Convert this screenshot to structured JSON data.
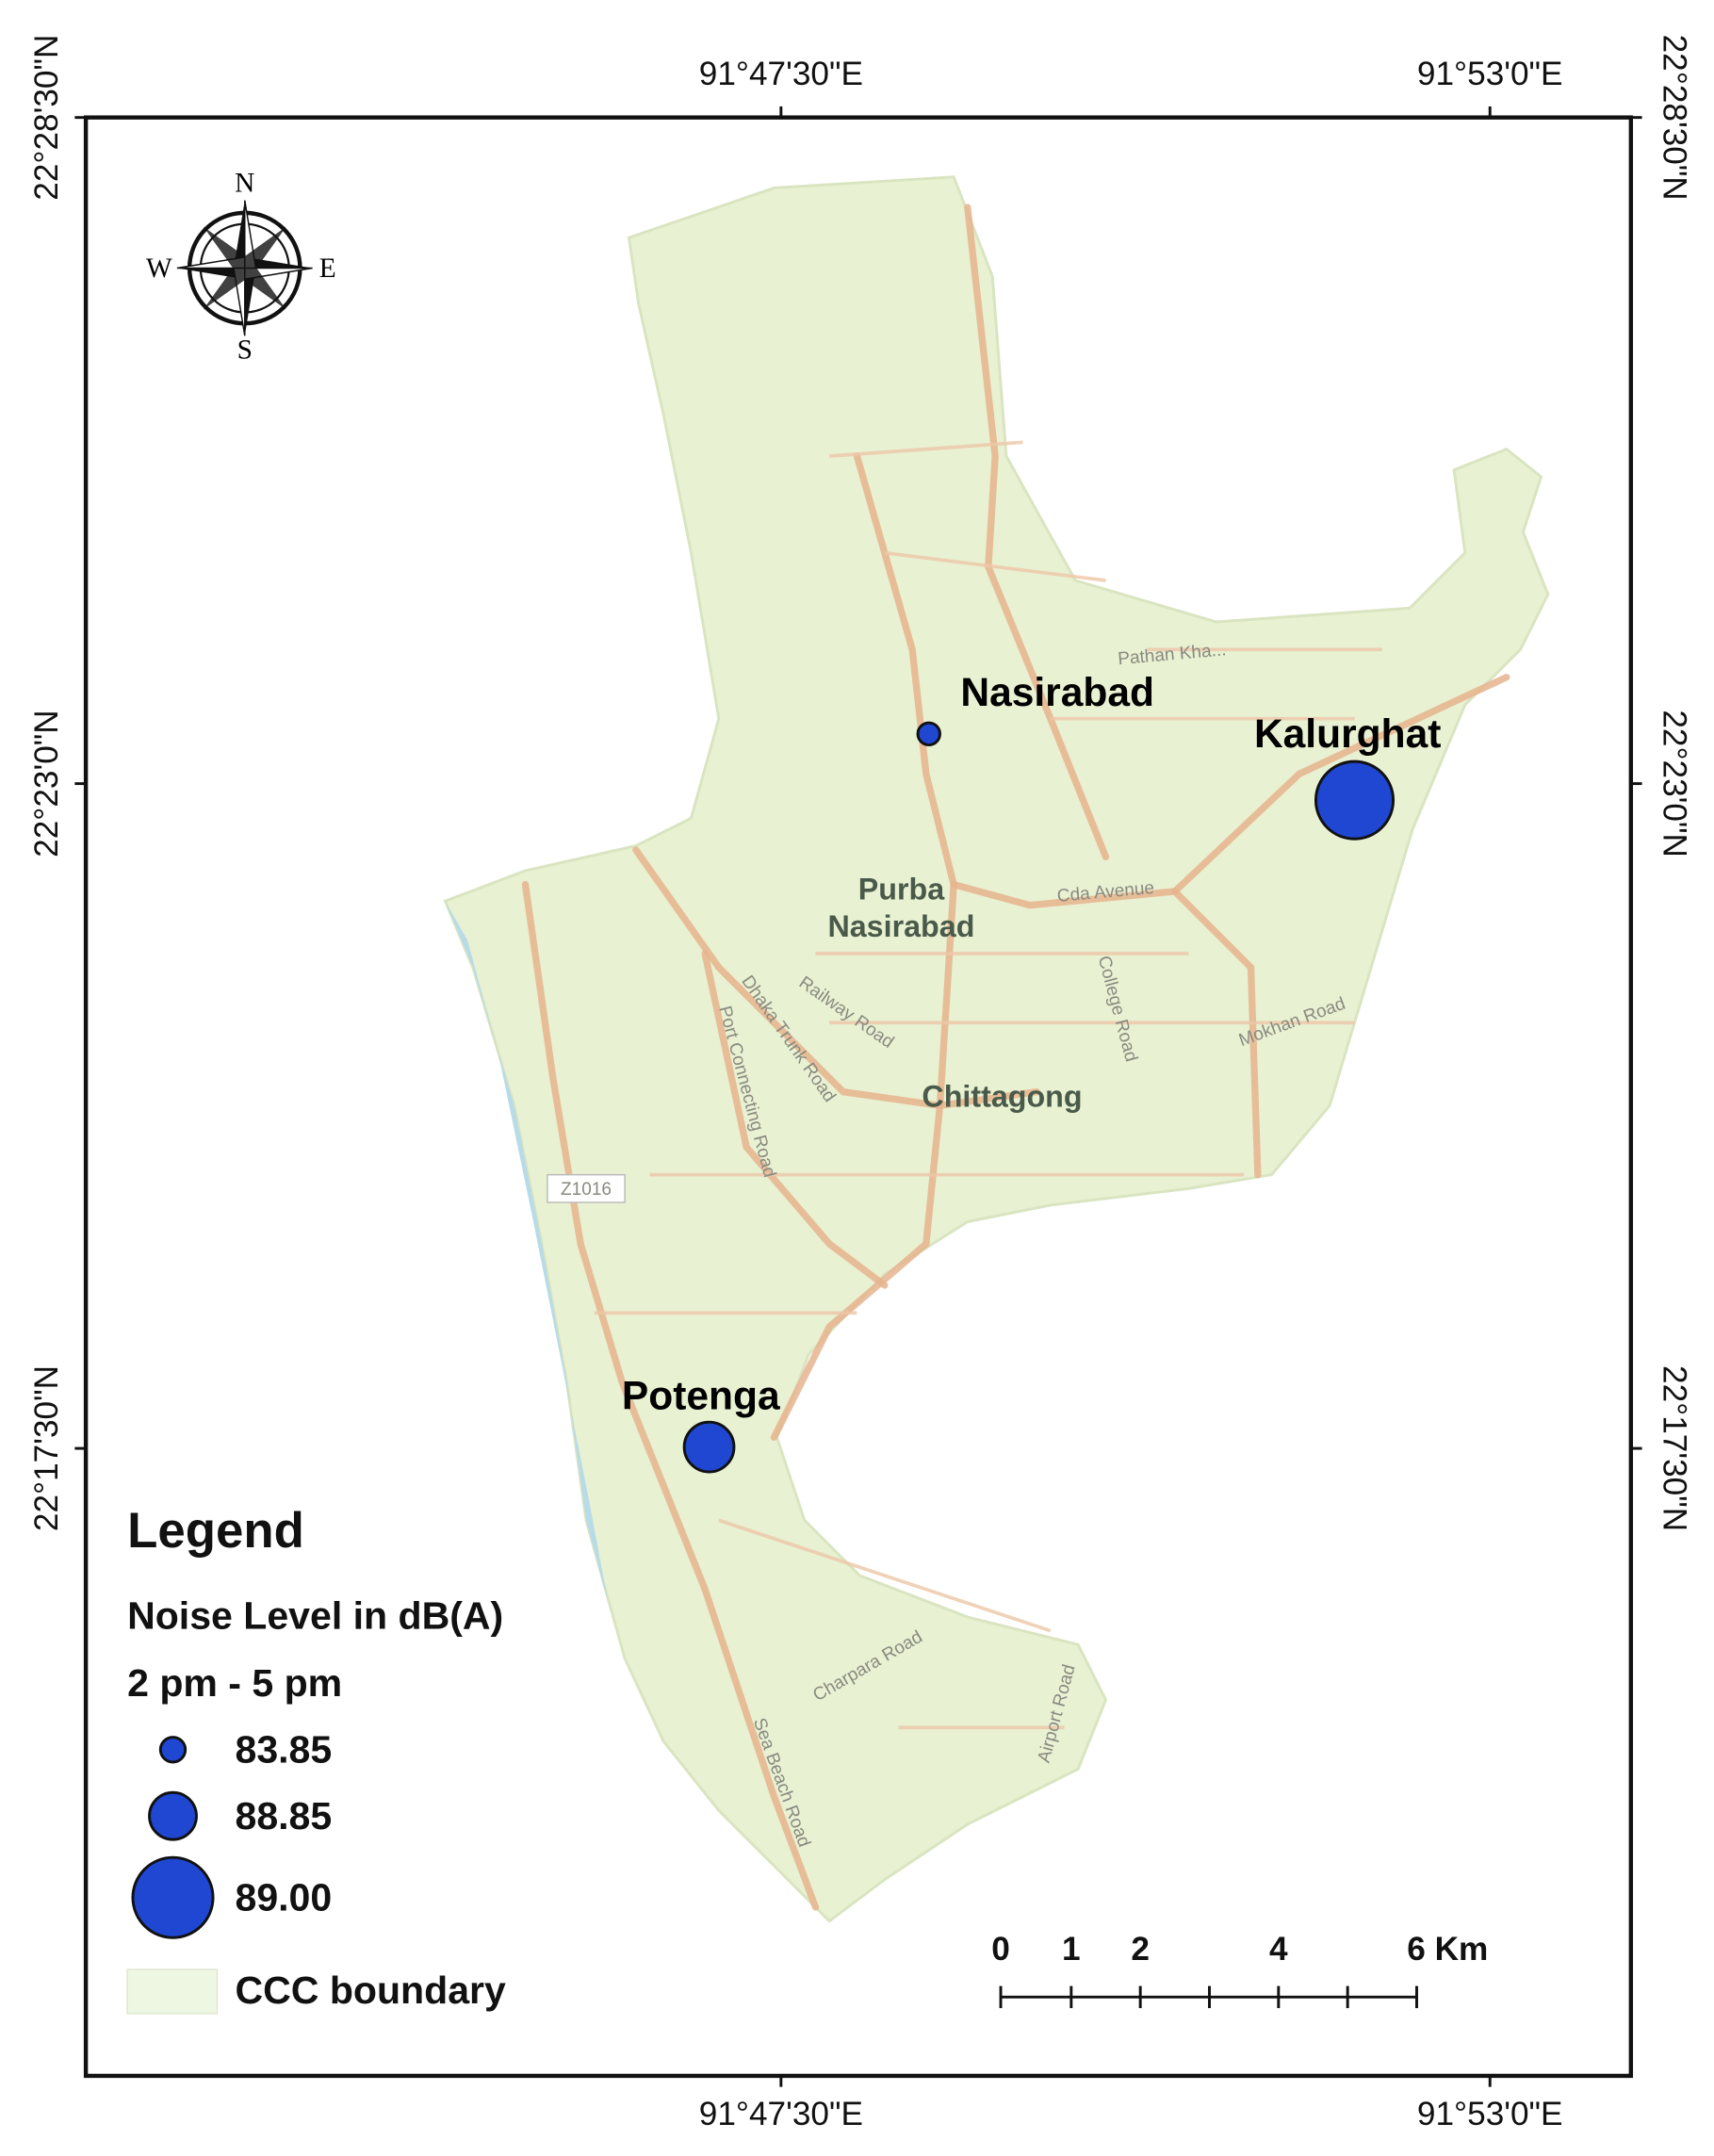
{
  "map": {
    "top_labels": [
      "91°47'30\"E",
      "91°53'0\"E"
    ],
    "bottom_labels": [
      "91°47'30\"E",
      "91°53'0\"E"
    ],
    "left_labels": [
      "22°28'30\"N",
      "22°23'0\"N",
      "22°17'30\"N"
    ],
    "right_labels": [
      "22°28'30\"N",
      "22°23'0\"N",
      "22°17'30\"N"
    ],
    "compass": [
      "N",
      "S",
      "E",
      "W"
    ],
    "sites": [
      "Nasirabad",
      "Kalurghat",
      "Potenga"
    ],
    "base_labels": [
      "Purba",
      "Nasirabad",
      "Chittagong",
      "Z1016"
    ],
    "roads": [
      "Cda Avenue",
      "College Road",
      "Railway Road",
      "Dhaka Trunk Road",
      "Port Connecting Road",
      "Mokhan Road",
      "Pathan Kha...",
      "Charpara Road",
      "Airport Road",
      "Sea Beach Road"
    ],
    "legend": {
      "title": "Legend",
      "subtitle": "Noise Level in dB(A)",
      "period": "2 pm - 5 pm",
      "levels": [
        "83.85",
        "88.85",
        "89.00"
      ],
      "boundary": "CCC boundary"
    },
    "scale_bar": [
      "0",
      "1",
      "2",
      "4",
      "6 Km"
    ]
  }
}
